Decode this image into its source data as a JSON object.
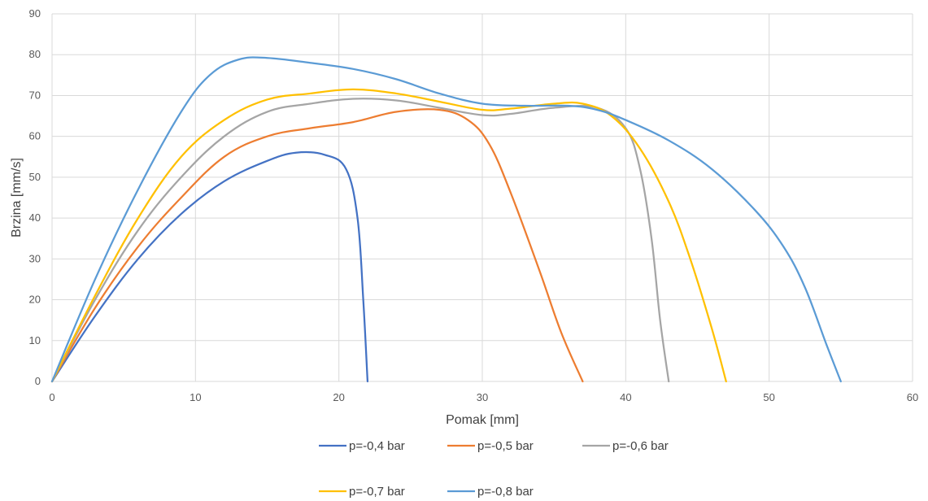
{
  "chart_data": {
    "type": "line",
    "xlabel": "Pomak [mm]",
    "ylabel": "Brzina [mm/s]",
    "xlim": [
      0,
      60
    ],
    "ylim": [
      0,
      90
    ],
    "xticks": [
      "0",
      "10",
      "20",
      "30",
      "40",
      "50",
      "60"
    ],
    "yticks": [
      "0",
      "10",
      "20",
      "30",
      "40",
      "50",
      "60",
      "70",
      "80",
      "90"
    ],
    "grid": "both",
    "legend_position": "bottom",
    "series": [
      {
        "name": "p=-0,4 bar",
        "color": "#4472c4",
        "points": [
          [
            0,
            0
          ],
          [
            3,
            16
          ],
          [
            6,
            30
          ],
          [
            9,
            41
          ],
          [
            12,
            49
          ],
          [
            15,
            54
          ],
          [
            17,
            56
          ],
          [
            19,
            55.5
          ],
          [
            20.5,
            52
          ],
          [
            21.3,
            40
          ],
          [
            21.7,
            20
          ],
          [
            22,
            0
          ]
        ]
      },
      {
        "name": "p=-0,5 bar",
        "color": "#ed7d31",
        "points": [
          [
            0,
            0
          ],
          [
            3,
            18
          ],
          [
            6,
            33
          ],
          [
            9,
            45
          ],
          [
            12,
            55
          ],
          [
            15,
            60
          ],
          [
            18,
            62
          ],
          [
            21,
            63.5
          ],
          [
            24,
            66
          ],
          [
            27,
            66.5
          ],
          [
            29,
            64
          ],
          [
            30.5,
            58
          ],
          [
            32,
            46
          ],
          [
            34,
            27
          ],
          [
            35.5,
            12
          ],
          [
            37,
            0
          ]
        ]
      },
      {
        "name": "p=-0,6 bar",
        "color": "#a5a5a5",
        "points": [
          [
            0,
            0
          ],
          [
            3,
            20
          ],
          [
            6,
            37
          ],
          [
            9,
            50
          ],
          [
            12,
            60
          ],
          [
            15,
            66
          ],
          [
            18,
            68
          ],
          [
            21,
            69.2
          ],
          [
            24,
            68.8
          ],
          [
            27,
            67
          ],
          [
            30,
            65.2
          ],
          [
            32,
            65.5
          ],
          [
            35,
            67
          ],
          [
            38,
            67
          ],
          [
            40,
            62
          ],
          [
            41,
            52
          ],
          [
            41.8,
            35
          ],
          [
            42.4,
            15
          ],
          [
            43,
            0
          ]
        ]
      },
      {
        "name": "p=-0,7 bar",
        "color": "#ffc000",
        "points": [
          [
            0,
            0
          ],
          [
            3,
            21
          ],
          [
            6,
            40
          ],
          [
            9,
            55
          ],
          [
            12,
            64
          ],
          [
            15,
            69
          ],
          [
            18,
            70.5
          ],
          [
            21,
            71.5
          ],
          [
            24,
            70.5
          ],
          [
            27,
            68.5
          ],
          [
            30,
            66.5
          ],
          [
            32,
            66.8
          ],
          [
            35,
            68
          ],
          [
            37,
            68
          ],
          [
            39,
            65
          ],
          [
            41,
            57
          ],
          [
            43,
            44
          ],
          [
            44.5,
            30
          ],
          [
            46,
            13
          ],
          [
            47,
            0
          ]
        ]
      },
      {
        "name": "p=-0,8 bar",
        "color": "#5b9bd5",
        "points": [
          [
            0,
            0
          ],
          [
            3,
            25
          ],
          [
            6,
            47
          ],
          [
            9,
            66
          ],
          [
            11,
            75
          ],
          [
            13,
            78.8
          ],
          [
            15,
            79.2
          ],
          [
            18,
            78
          ],
          [
            21,
            76.5
          ],
          [
            24,
            74
          ],
          [
            27,
            70.5
          ],
          [
            30,
            68
          ],
          [
            33,
            67.5
          ],
          [
            36,
            67.5
          ],
          [
            38,
            66.5
          ],
          [
            40,
            64
          ],
          [
            43,
            59
          ],
          [
            46,
            52
          ],
          [
            49,
            42
          ],
          [
            51,
            33
          ],
          [
            52.5,
            23
          ],
          [
            54,
            9
          ],
          [
            55,
            0
          ]
        ]
      }
    ]
  }
}
